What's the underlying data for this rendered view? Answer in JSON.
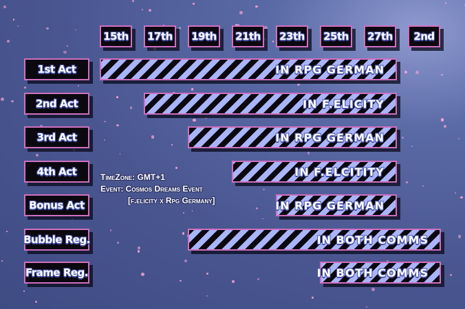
{
  "dates": [
    "15th",
    "17th",
    "19th",
    "21th",
    "23th",
    "25th",
    "27th",
    "2nd"
  ],
  "rows": [
    {
      "label": "1st Act",
      "bar_text": "IN RPG GERMAN"
    },
    {
      "label": "2nd Act",
      "bar_text": "IN F.ELICITY"
    },
    {
      "label": "3rd Act",
      "bar_text": "IN RPG GERMAN"
    },
    {
      "label": "4th Act",
      "bar_text": "IN F.ELCITITY"
    },
    {
      "label": "Bonus Act",
      "bar_text": "IN RPG GERMAN"
    },
    {
      "label": "Bubble Reg.",
      "bar_text": "IN BOTH COMMS"
    },
    {
      "label": "Frame Reg.",
      "bar_text": "IN BOTH COMMS"
    }
  ],
  "info": {
    "timezone": "TimeZone: GMT+1",
    "event": "Event: Cosmos Dreams Event",
    "event_sub": "[f.elicity x Rpg Germany]"
  },
  "colors": {
    "border": "#d070c0",
    "stripe_light": "#aab4f8",
    "stripe_dark": "#0b0810",
    "background": "#4a5690"
  }
}
